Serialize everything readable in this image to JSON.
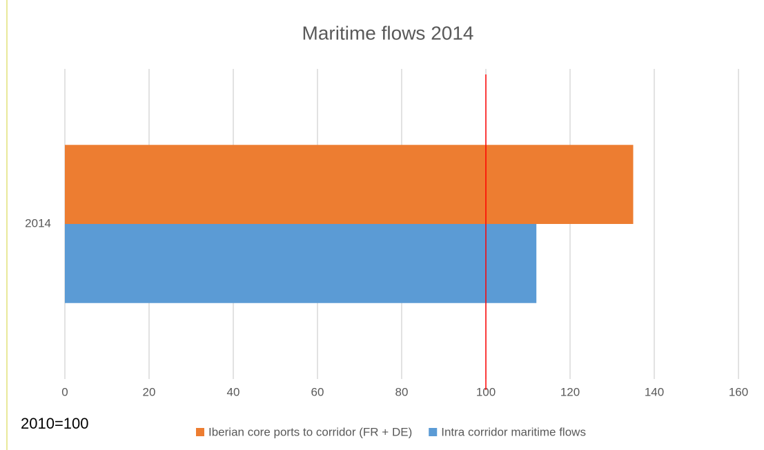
{
  "chart_data": {
    "type": "hbar",
    "title": "Maritime flows 2014",
    "categories": [
      "2014"
    ],
    "series": [
      {
        "name": "Iberian core ports to corridor (FR + DE)",
        "color": "#ed7d31",
        "values": [
          135
        ]
      },
      {
        "name": "Intra corridor maritime flows",
        "color": "#5b9bd5",
        "values": [
          112
        ]
      }
    ],
    "xlim": [
      0,
      160
    ],
    "xticks": [
      0,
      20,
      40,
      60,
      80,
      100,
      120,
      140,
      160
    ],
    "grid": true,
    "reference_line": {
      "value": 100,
      "color": "#ff0000"
    },
    "annotation": "2010=100",
    "legend": "bottom"
  }
}
